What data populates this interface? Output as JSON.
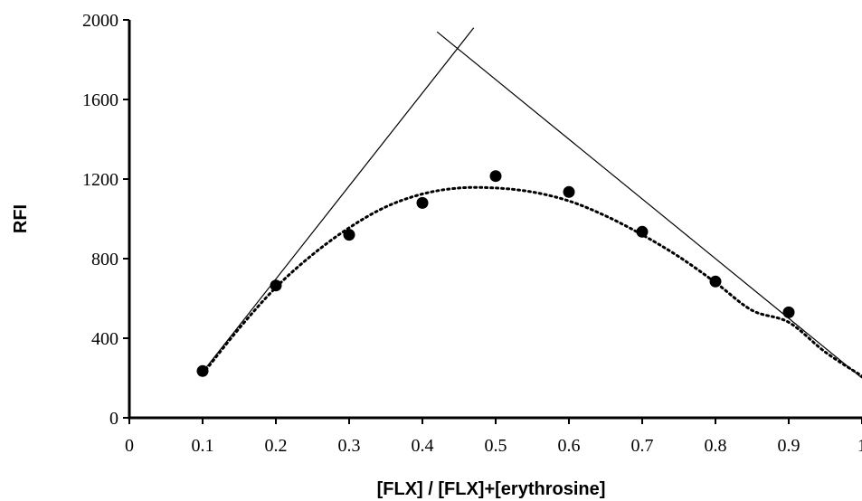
{
  "chart_data": {
    "type": "scatter",
    "title": "",
    "xlabel": "[FLX] / [FLX]+[erythrosine]",
    "ylabel": "RFI",
    "xlim": [
      0,
      1
    ],
    "ylim": [
      0,
      2000
    ],
    "x_ticks": [
      "0",
      "0.1",
      "0.2",
      "0.3",
      "0.4",
      "0.5",
      "0.6",
      "0.7",
      "0.8",
      "0.9",
      "1"
    ],
    "y_ticks": [
      "0",
      "400",
      "800",
      "1200",
      "1600",
      "2000"
    ],
    "grid": false,
    "legend": "none",
    "series": [
      {
        "style": "marker",
        "x": [
          0.1,
          0.2,
          0.3,
          0.4,
          0.5,
          0.6,
          0.7,
          0.8,
          0.9
        ],
        "y": [
          235,
          665,
          920,
          1080,
          1215,
          1135,
          935,
          685,
          530
        ]
      }
    ],
    "trendline": {
      "style": "dotted",
      "kind": "polynomial",
      "x": [
        0.1,
        0.15,
        0.2,
        0.25,
        0.3,
        0.35,
        0.4,
        0.45,
        0.5,
        0.55,
        0.6,
        0.65,
        0.7,
        0.75,
        0.8,
        0.85,
        0.9,
        0.95,
        1.0
      ],
      "y": [
        220,
        450,
        655,
        820,
        955,
        1060,
        1125,
        1155,
        1155,
        1135,
        1090,
        1015,
        920,
        810,
        680,
        540,
        480,
        330,
        210
      ]
    },
    "tangent_lines": [
      {
        "style": "solid",
        "x": [
          0.1,
          0.47
        ],
        "y": [
          230,
          1960
        ]
      },
      {
        "style": "solid",
        "x": [
          0.42,
          1.0
        ],
        "y": [
          1940,
          200
        ]
      }
    ]
  }
}
